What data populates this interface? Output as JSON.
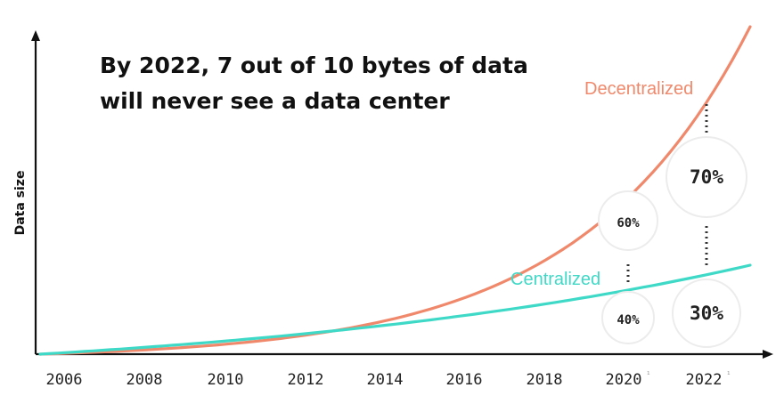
{
  "chart_data": {
    "type": "line",
    "title_lines": [
      "By 2022, 7 out of 10 bytes of data",
      "will never see a data center"
    ],
    "ylabel": "Data size",
    "xlabel": "",
    "x_ticks": [
      "2006",
      "2008",
      "2010",
      "2012",
      "2014",
      "2016",
      "2018",
      "2020",
      "2022"
    ],
    "tick_marks": [
      "",
      "",
      "",
      "",
      "",
      "",
      "",
      "¹",
      "¹"
    ],
    "grid": false,
    "legend": "inline labels",
    "series": [
      {
        "name": "Decentralized",
        "color": "#f0896c",
        "curve": "exponential growth"
      },
      {
        "name": "Centralized",
        "color": "#3fd9c7",
        "curve": "moderate growth"
      }
    ],
    "shares": [
      {
        "year": "2020",
        "decentralized": "60%",
        "centralized": "40%"
      },
      {
        "year": "2022",
        "decentralized": "70%",
        "centralized": "30%"
      }
    ]
  }
}
